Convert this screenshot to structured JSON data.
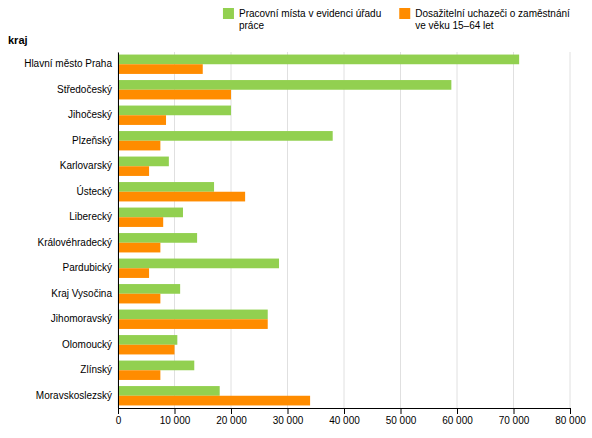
{
  "chart_data": {
    "type": "bar",
    "orientation": "horizontal",
    "ylabel": "kraj",
    "categories": [
      "Moravskoslezský",
      "Zlínský",
      "Olomoucký",
      "Jihomoravský",
      "Kraj Vysočina",
      "Pardubický",
      "Královéhradecký",
      "Liberecký",
      "Ústecký",
      "Karlovarský",
      "Plzeňský",
      "Jihočeský",
      "Středočeský",
      "Hlavní město Praha"
    ],
    "series": [
      {
        "name": "Pracovní místa v evidenci úřadu\npráce",
        "color": "#92d050",
        "values": [
          18000,
          13500,
          10500,
          26500,
          11000,
          28500,
          14000,
          11500,
          17000,
          9000,
          38000,
          20000,
          59000,
          71000
        ]
      },
      {
        "name": "Dosažitelní uchazeči o zaměstnání\nve věku 15–64 let",
        "color": "#ff8c00",
        "values": [
          34000,
          7500,
          10000,
          26500,
          7500,
          5500,
          7500,
          8000,
          22500,
          5500,
          7500,
          8500,
          20000,
          15000
        ]
      }
    ],
    "xlim": [
      0,
      80000
    ],
    "xticks": [
      0,
      {
        "value": 10000,
        "label": "10 000"
      },
      {
        "value": 20000,
        "label": "20 000"
      },
      {
        "value": 30000,
        "label": "30 000"
      },
      {
        "value": 40000,
        "label": "40 000"
      },
      {
        "value": 50000,
        "label": "50 000"
      },
      {
        "value": 60000,
        "label": "60 000"
      },
      {
        "value": 70000,
        "label": "70 000"
      },
      {
        "value": 80000,
        "label": "80 000"
      }
    ],
    "grid": true,
    "legend": "upper right"
  }
}
